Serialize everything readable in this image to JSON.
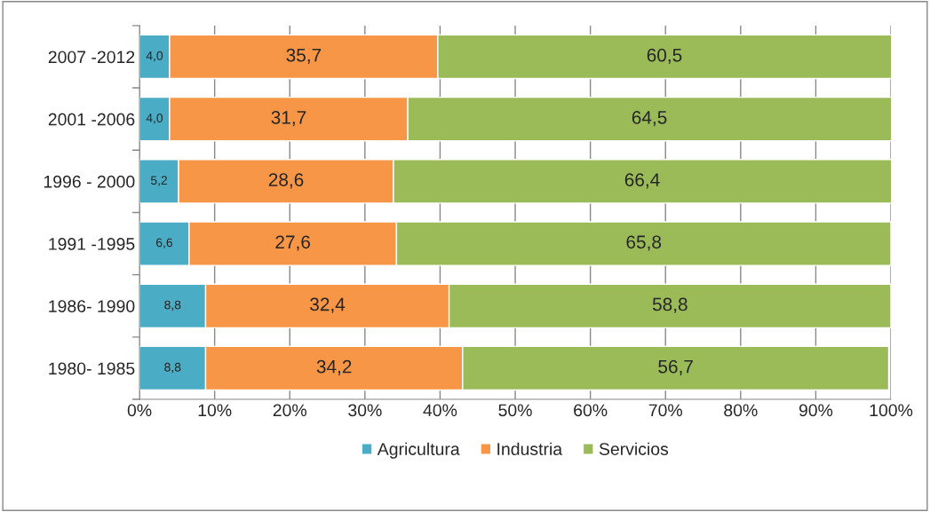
{
  "chart_data": {
    "type": "bar",
    "orientation": "horizontal",
    "stacked": true,
    "categories": [
      "2007 -2012",
      "2001 -2006",
      "1996 - 2000",
      "1991 -1995",
      "1986- 1990",
      "1980- 1985"
    ],
    "series": [
      {
        "name": "Agricultura",
        "color": "#4bacc6",
        "values": [
          4.0,
          4.0,
          5.2,
          6.6,
          8.8,
          8.8
        ],
        "value_labels": [
          "4,0",
          "4,0",
          "5,2",
          "6,6",
          "8,8",
          "8,8"
        ]
      },
      {
        "name": "Industria",
        "color": "#f79646",
        "values": [
          35.7,
          31.7,
          28.6,
          27.6,
          32.4,
          34.2
        ],
        "value_labels": [
          "35,7",
          "31,7",
          "28,6",
          "27,6",
          "32,4",
          "34,2"
        ]
      },
      {
        "name": "Servicios",
        "color": "#9bbb59",
        "values": [
          60.5,
          64.5,
          66.4,
          65.8,
          58.8,
          56.7
        ],
        "value_labels": [
          "60,5",
          "64,5",
          "66,4",
          "65,8",
          "58,8",
          "56,7"
        ]
      }
    ],
    "xlim": [
      0,
      100
    ],
    "xticks": [
      {
        "value": 0,
        "label": "0%"
      },
      {
        "value": 10,
        "label": "10%"
      },
      {
        "value": 20,
        "label": "20%"
      },
      {
        "value": 30,
        "label": "30%"
      },
      {
        "value": 40,
        "label": "40%"
      },
      {
        "value": 50,
        "label": "50%"
      },
      {
        "value": 60,
        "label": "60%"
      },
      {
        "value": 70,
        "label": "70%"
      },
      {
        "value": 80,
        "label": "80%"
      },
      {
        "value": 90,
        "label": "90%"
      },
      {
        "value": 100,
        "label": "100%"
      }
    ],
    "grid": "x",
    "legend": "bottom"
  }
}
